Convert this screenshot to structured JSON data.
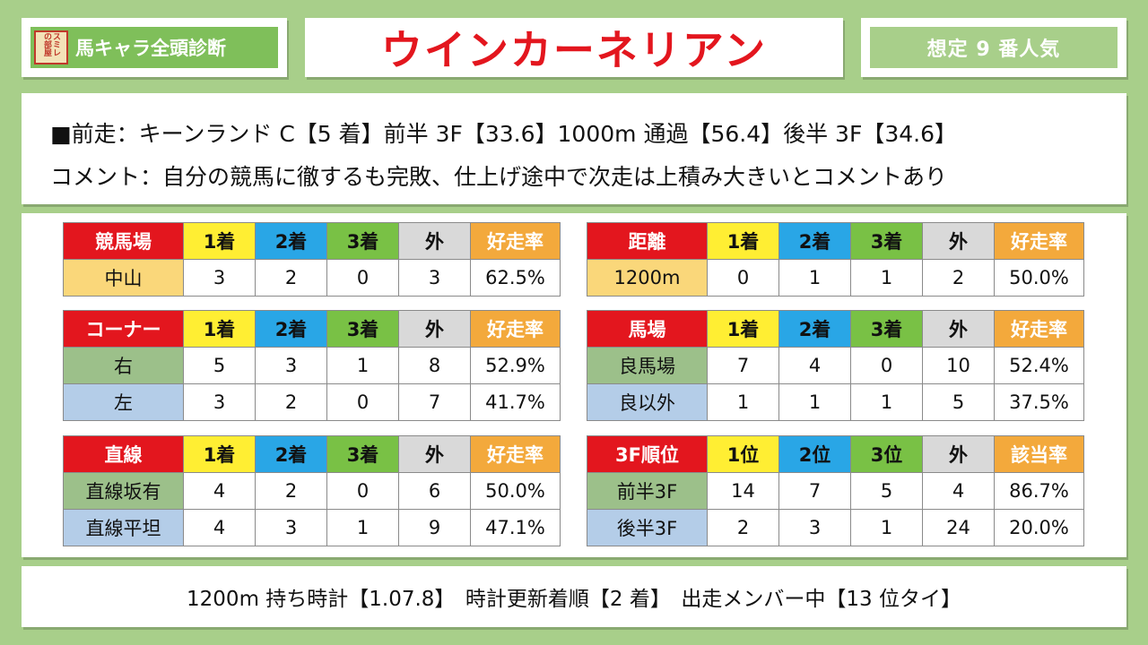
{
  "brand": {
    "logo_text": "スミレの部屋",
    "title": "馬キャラ全頭診断"
  },
  "horse_name": "ウインカーネリアン",
  "popularity": "想定 9 番人気",
  "info": {
    "line1": "■前走：キーンランド C【5 着】前半 3F【33.6】1000m 通過【56.4】後半 3F【34.6】",
    "line2": "コメント：自分の競馬に徹するも完敗、仕上げ途中で次走は上積み大きいとコメントあり"
  },
  "colors": {
    "background": "#a8cf8a",
    "label_red": "#e3161e",
    "col1_yellow": "#ffee33",
    "col2_blue": "#29a6e6",
    "col3_green": "#79c145",
    "other_gray": "#d9d9d9",
    "rate_orange": "#f3a93c"
  },
  "tables": {
    "course": {
      "headers": [
        "競馬場",
        "1着",
        "2着",
        "3着",
        "外",
        "好走率"
      ],
      "rows": [
        [
          "中山",
          "3",
          "2",
          "0",
          "3",
          "62.5%"
        ]
      ]
    },
    "distance": {
      "headers": [
        "距離",
        "1着",
        "2着",
        "3着",
        "外",
        "好走率"
      ],
      "rows": [
        [
          "1200m",
          "0",
          "1",
          "1",
          "2",
          "50.0%"
        ]
      ]
    },
    "corner": {
      "headers": [
        "コーナー",
        "1着",
        "2着",
        "3着",
        "外",
        "好走率"
      ],
      "rows": [
        [
          "右",
          "5",
          "3",
          "1",
          "8",
          "52.9%"
        ],
        [
          "左",
          "3",
          "2",
          "0",
          "7",
          "41.7%"
        ]
      ]
    },
    "track": {
      "headers": [
        "馬場",
        "1着",
        "2着",
        "3着",
        "外",
        "好走率"
      ],
      "rows": [
        [
          "良馬場",
          "7",
          "4",
          "0",
          "10",
          "52.4%"
        ],
        [
          "良以外",
          "1",
          "1",
          "1",
          "5",
          "37.5%"
        ]
      ]
    },
    "straight": {
      "headers": [
        "直線",
        "1着",
        "2着",
        "3着",
        "外",
        "好走率"
      ],
      "rows": [
        [
          "直線坂有",
          "4",
          "2",
          "0",
          "6",
          "50.0%"
        ],
        [
          "直線平坦",
          "4",
          "3",
          "1",
          "9",
          "47.1%"
        ]
      ]
    },
    "rank3f": {
      "headers": [
        "3F順位",
        "1位",
        "2位",
        "3位",
        "外",
        "該当率"
      ],
      "rows": [
        [
          "前半3F",
          "14",
          "7",
          "5",
          "4",
          "86.7%"
        ],
        [
          "後半3F",
          "2",
          "3",
          "1",
          "24",
          "20.0%"
        ]
      ]
    }
  },
  "footer": "1200m 持ち時計【1.07.8】　時計更新着順【2 着】　出走メンバー中【13 位タイ】"
}
